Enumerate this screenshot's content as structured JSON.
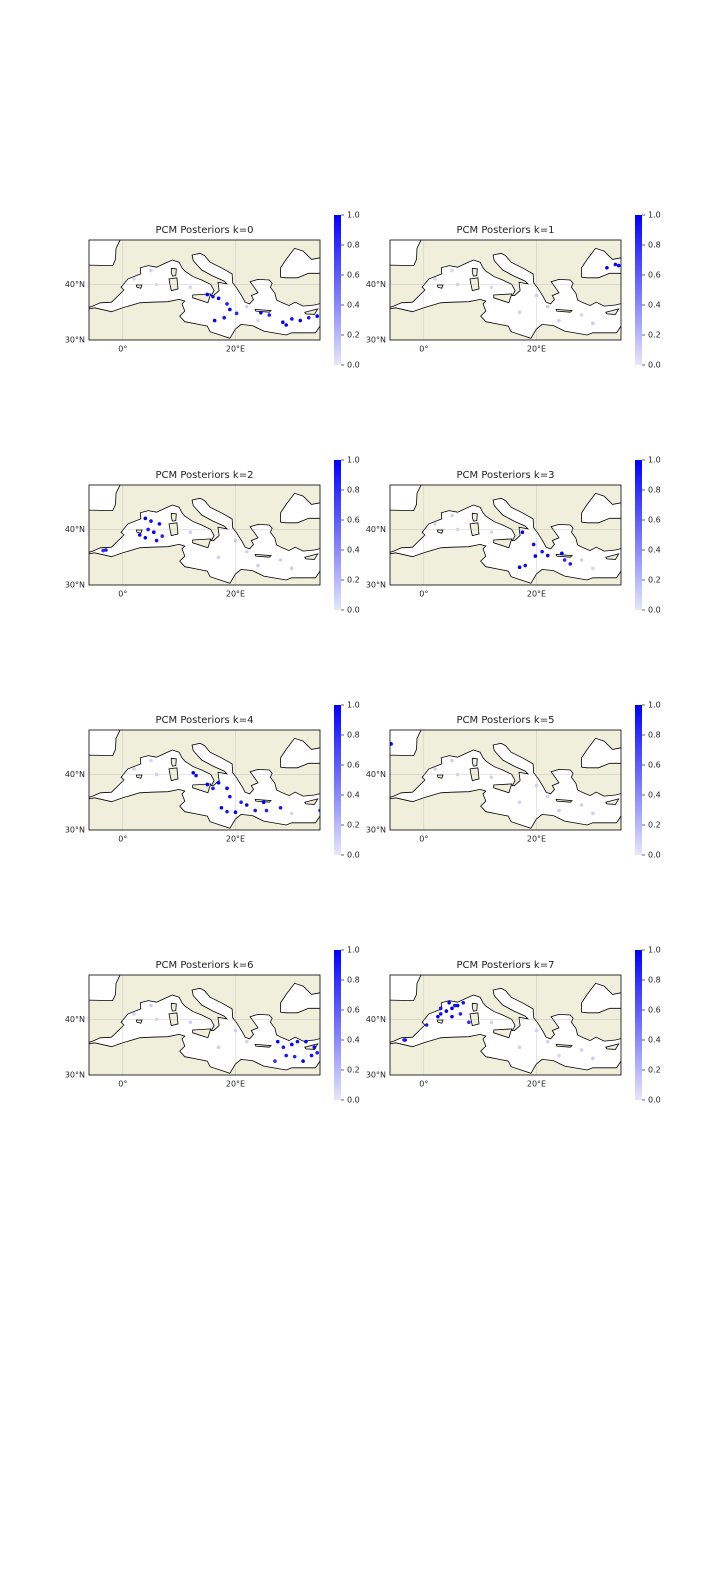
{
  "chart_data": [
    {
      "type": "map",
      "title": "PCM Posteriors k=0",
      "xlim": [
        -6,
        35
      ],
      "ylim": [
        30,
        48
      ],
      "xticks": [
        {
          "value": 0,
          "label": "0°"
        },
        {
          "value": 20,
          "label": "20°E"
        }
      ],
      "yticks": [
        {
          "value": 30,
          "label": "30°N"
        },
        {
          "value": 40,
          "label": "40°N"
        }
      ],
      "grid": true,
      "land_color": "#efefdc",
      "cmap": [
        "#e6e6fa",
        "#0000ff"
      ],
      "clim": [
        0,
        1
      ],
      "cticks": [
        {
          "value": 0,
          "label": "0.0"
        },
        0.2,
        0.4,
        0.6,
        0.8,
        {
          "value": 1,
          "label": "1.0"
        }
      ],
      "x": [
        15,
        16,
        17,
        18.5,
        19,
        20.2,
        16.3,
        18,
        24.5,
        26,
        28.4,
        29,
        30,
        31.5,
        33,
        34.5,
        2,
        5,
        6,
        12,
        22,
        24
      ],
      "y": [
        38.2,
        37.8,
        37.5,
        36.5,
        35.5,
        34.8,
        33.5,
        34,
        34.9,
        34.5,
        33.2,
        32.7,
        33.8,
        33.5,
        34,
        34.3,
        41,
        42.5,
        40,
        39.5,
        36,
        33.5
      ],
      "values": [
        1,
        0.95,
        1,
        0.9,
        1,
        0.85,
        1,
        0.95,
        1,
        0.9,
        1,
        1,
        0.95,
        1,
        0.9,
        1,
        0.08,
        0.1,
        0.06,
        0.08,
        0.1,
        0.07
      ]
    },
    {
      "type": "map",
      "title": "PCM Posteriors k=1",
      "xlim": [
        -6,
        35
      ],
      "ylim": [
        30,
        48
      ],
      "xticks": [
        {
          "value": 0,
          "label": "0°"
        },
        {
          "value": 20,
          "label": "20°E"
        }
      ],
      "yticks": [
        {
          "value": 30,
          "label": "30°N"
        },
        {
          "value": 40,
          "label": "40°N"
        }
      ],
      "grid": true,
      "land_color": "#efefdc",
      "cmap": [
        "#e6e6fa",
        "#0000ff"
      ],
      "clim": [
        0,
        1
      ],
      "cticks": [
        {
          "value": 0,
          "label": "0.0"
        },
        0.2,
        0.4,
        0.6,
        0.8,
        {
          "value": 1,
          "label": "1.0"
        }
      ],
      "x": [
        32.5,
        34,
        34.6,
        2,
        5,
        6,
        12,
        20,
        22,
        24,
        28,
        17,
        30
      ],
      "y": [
        43,
        43.6,
        43.4,
        41,
        42.5,
        40,
        39.5,
        38,
        36,
        33.5,
        34.5,
        35,
        33
      ],
      "values": [
        1,
        0.95,
        1,
        0.1,
        0.08,
        0.1,
        0.06,
        0.1,
        0.12,
        0.1,
        0.08,
        0.1,
        0.12
      ]
    },
    {
      "type": "map",
      "title": "PCM Posteriors k=2",
      "xlim": [
        -6,
        35
      ],
      "ylim": [
        30,
        48
      ],
      "xticks": [
        {
          "value": 0,
          "label": "0°"
        },
        {
          "value": 20,
          "label": "20°E"
        }
      ],
      "yticks": [
        {
          "value": 30,
          "label": "30°N"
        },
        {
          "value": 40,
          "label": "40°N"
        }
      ],
      "grid": true,
      "land_color": "#efefdc",
      "cmap": [
        "#e6e6fa",
        "#0000ff"
      ],
      "clim": [
        0,
        1
      ],
      "cticks": [
        {
          "value": 0,
          "label": "0.0"
        },
        0.2,
        0.4,
        0.6,
        0.8,
        {
          "value": 1,
          "label": "1.0"
        }
      ],
      "x": [
        4,
        5,
        6.5,
        4.5,
        3,
        5.5,
        7,
        6,
        4,
        -3.5,
        -3,
        12,
        20,
        22,
        24,
        28,
        17,
        30
      ],
      "y": [
        42,
        41.5,
        41,
        40,
        39,
        39.5,
        38.8,
        38,
        38.5,
        36.2,
        36.3,
        39.5,
        38,
        36,
        33.5,
        34.5,
        35,
        33
      ],
      "values": [
        1,
        0.95,
        1,
        0.9,
        1,
        1,
        0.85,
        0.95,
        1,
        0.8,
        0.9,
        0.1,
        0.12,
        0.1,
        0.12,
        0.1,
        0.1,
        0.12
      ]
    },
    {
      "type": "map",
      "title": "PCM Posteriors k=3",
      "xlim": [
        -6,
        35
      ],
      "ylim": [
        30,
        48
      ],
      "xticks": [
        {
          "value": 0,
          "label": "0°"
        },
        {
          "value": 20,
          "label": "20°E"
        }
      ],
      "yticks": [
        {
          "value": 30,
          "label": "30°N"
        },
        {
          "value": 40,
          "label": "40°N"
        }
      ],
      "grid": true,
      "land_color": "#efefdc",
      "cmap": [
        "#e6e6fa",
        "#0000ff"
      ],
      "clim": [
        0,
        1
      ],
      "cticks": [
        {
          "value": 0,
          "label": "0.0"
        },
        0.2,
        0.4,
        0.6,
        0.8,
        {
          "value": 1,
          "label": "1.0"
        }
      ],
      "x": [
        17.5,
        19.5,
        19.8,
        21,
        22,
        24.5,
        26,
        25,
        17,
        18,
        2,
        5,
        6,
        12,
        28,
        30
      ],
      "y": [
        39.5,
        37.3,
        35.2,
        36,
        35.3,
        35.7,
        33.8,
        34.5,
        33.2,
        33.5,
        41,
        42.5,
        40,
        39.5,
        34.5,
        33
      ],
      "values": [
        1,
        0.95,
        1,
        0.9,
        1,
        1,
        0.9,
        0.85,
        1,
        0.95,
        0.08,
        0.1,
        0.08,
        0.06,
        0.1,
        0.08
      ]
    },
    {
      "type": "map",
      "title": "PCM Posteriors k=4",
      "xlim": [
        -6,
        35
      ],
      "ylim": [
        30,
        48
      ],
      "xticks": [
        {
          "value": 0,
          "label": "0°"
        },
        {
          "value": 20,
          "label": "20°E"
        }
      ],
      "yticks": [
        {
          "value": 30,
          "label": "30°N"
        },
        {
          "value": 40,
          "label": "40°N"
        }
      ],
      "grid": true,
      "land_color": "#efefdc",
      "cmap": [
        "#e6e6fa",
        "#0000ff"
      ],
      "clim": [
        0,
        1
      ],
      "cticks": [
        {
          "value": 0,
          "label": "0.0"
        },
        0.2,
        0.4,
        0.6,
        0.8,
        {
          "value": 1,
          "label": "1.0"
        }
      ],
      "x": [
        12.5,
        13,
        15,
        16,
        17,
        18.5,
        19,
        17.5,
        18.5,
        20,
        21,
        22,
        23.5,
        25,
        25.5,
        28,
        35,
        2,
        5,
        6,
        30
      ],
      "y": [
        40.3,
        39.8,
        38.2,
        37.5,
        38.5,
        37.5,
        36,
        34,
        33.3,
        33.2,
        35,
        34.5,
        33.5,
        35,
        33.5,
        34,
        33.5,
        41,
        42.5,
        40,
        33
      ],
      "values": [
        1,
        0.95,
        1,
        0.9,
        1,
        1,
        0.95,
        1,
        0.9,
        1,
        0.85,
        1,
        0.9,
        1,
        0.85,
        0.9,
        0.8,
        0.1,
        0.08,
        0.1,
        0.08
      ]
    },
    {
      "type": "map",
      "title": "PCM Posteriors k=5",
      "xlim": [
        -6,
        35
      ],
      "ylim": [
        30,
        48
      ],
      "xticks": [
        {
          "value": 0,
          "label": "0°"
        },
        {
          "value": 20,
          "label": "20°E"
        }
      ],
      "yticks": [
        {
          "value": 30,
          "label": "30°N"
        },
        {
          "value": 40,
          "label": "40°N"
        }
      ],
      "grid": true,
      "land_color": "#efefdc",
      "cmap": [
        "#e6e6fa",
        "#0000ff"
      ],
      "clim": [
        0,
        1
      ],
      "cticks": [
        {
          "value": 0,
          "label": "0.0"
        },
        0.2,
        0.4,
        0.6,
        0.8,
        {
          "value": 1,
          "label": "1.0"
        }
      ],
      "x": [
        -5.8,
        2,
        5,
        6,
        12,
        20,
        22,
        24,
        28,
        17,
        30
      ],
      "y": [
        45.5,
        41,
        42.5,
        40,
        39.5,
        38,
        36,
        33.5,
        34.5,
        35,
        33
      ],
      "values": [
        1,
        0.1,
        0.12,
        0.1,
        0.08,
        0.1,
        0.1,
        0.12,
        0.1,
        0.08,
        0.1
      ]
    },
    {
      "type": "map",
      "title": "PCM Posteriors k=6",
      "xlim": [
        -6,
        35
      ],
      "ylim": [
        30,
        48
      ],
      "xticks": [
        {
          "value": 0,
          "label": "0°"
        },
        {
          "value": 20,
          "label": "20°E"
        }
      ],
      "yticks": [
        {
          "value": 30,
          "label": "30°N"
        },
        {
          "value": 40,
          "label": "40°N"
        }
      ],
      "grid": true,
      "land_color": "#efefdc",
      "cmap": [
        "#e6e6fa",
        "#0000ff"
      ],
      "clim": [
        0,
        1
      ],
      "cticks": [
        {
          "value": 0,
          "label": "0.0"
        },
        0.2,
        0.4,
        0.6,
        0.8,
        {
          "value": 1,
          "label": "1.0"
        }
      ],
      "x": [
        27.5,
        28.5,
        30,
        31,
        32.5,
        34,
        34.5,
        33.5,
        32,
        30.5,
        29,
        27,
        2,
        5,
        6,
        12,
        20,
        22,
        17
      ],
      "y": [
        36,
        35,
        35.5,
        36,
        36,
        35,
        34,
        33.5,
        32.5,
        33.3,
        33.5,
        32.5,
        41,
        42.5,
        40,
        39.5,
        38,
        36,
        35
      ],
      "values": [
        1,
        0.9,
        1,
        0.95,
        1,
        1,
        0.9,
        0.95,
        1,
        0.85,
        0.9,
        0.8,
        0.1,
        0.1,
        0.08,
        0.1,
        0.12,
        0.1,
        0.1
      ]
    },
    {
      "type": "map",
      "title": "PCM Posteriors k=7",
      "xlim": [
        -6,
        35
      ],
      "ylim": [
        30,
        48
      ],
      "xticks": [
        {
          "value": 0,
          "label": "0°"
        },
        {
          "value": 20,
          "label": "20°E"
        }
      ],
      "yticks": [
        {
          "value": 30,
          "label": "30°N"
        },
        {
          "value": 40,
          "label": "40°N"
        }
      ],
      "grid": true,
      "land_color": "#efefdc",
      "cmap": [
        "#e6e6fa",
        "#0000ff"
      ],
      "clim": [
        0,
        1
      ],
      "cticks": [
        {
          "value": 0,
          "label": "0.0"
        },
        0.2,
        0.4,
        0.6,
        0.8,
        {
          "value": 1,
          "label": "1.0"
        }
      ],
      "x": [
        2.5,
        3,
        4,
        5,
        5.5,
        6,
        7,
        4.5,
        3,
        5,
        6.5,
        0.5,
        -3.5,
        -3.3,
        8,
        12,
        20,
        22,
        24,
        28,
        17,
        30
      ],
      "y": [
        40.5,
        41,
        41.5,
        42,
        42.5,
        42.5,
        43,
        43,
        42,
        40.5,
        41,
        39,
        36.3,
        36.3,
        39.5,
        39.5,
        38,
        36,
        33.5,
        34.5,
        35,
        33
      ],
      "values": [
        1,
        0.95,
        1,
        1,
        0.9,
        1,
        0.95,
        1,
        0.9,
        1,
        0.85,
        0.9,
        0.85,
        0.9,
        0.8,
        0.08,
        0.1,
        0.1,
        0.08,
        0.1,
        0.1,
        0.12
      ]
    }
  ]
}
